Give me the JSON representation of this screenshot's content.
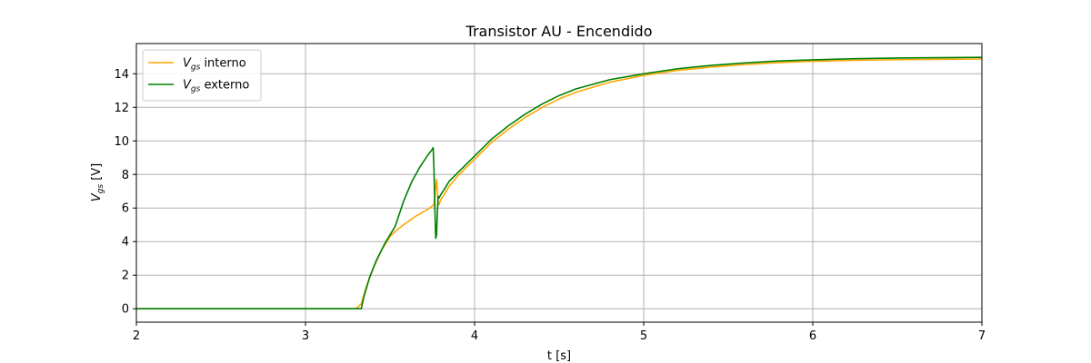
{
  "chart_data": {
    "type": "line",
    "title": "Transistor AU - Encendido",
    "xlabel": "t [s]",
    "ylabel": {
      "main": "V",
      "sub": "gs",
      "suffix": " [V]"
    },
    "xlim": [
      2,
      7
    ],
    "ylim": [
      -0.8,
      15.8
    ],
    "xticks": [
      2,
      3,
      4,
      5,
      6,
      7
    ],
    "yticks": [
      0,
      2,
      4,
      6,
      8,
      10,
      12,
      14
    ],
    "grid": true,
    "legend_position": "top-left",
    "series": [
      {
        "name": "interno",
        "label": {
          "main": "V",
          "sub": "gs",
          "suffix": " interno"
        },
        "color": "#ffa500",
        "x": [
          2.0,
          3.0,
          3.3,
          3.33,
          3.36,
          3.4,
          3.45,
          3.5,
          3.53,
          3.58,
          3.65,
          3.72,
          3.76,
          3.765,
          3.77,
          3.775,
          3.78,
          3.785,
          3.79,
          3.8,
          3.82,
          3.85,
          3.9,
          4.0,
          4.1,
          4.2,
          4.3,
          4.4,
          4.5,
          4.6,
          4.8,
          5.0,
          5.2,
          5.4,
          5.6,
          5.8,
          6.0,
          6.25,
          6.5,
          6.75,
          7.0
        ],
        "y": [
          0,
          0,
          0,
          0.3,
          1.3,
          2.4,
          3.5,
          4.3,
          4.6,
          5.0,
          5.5,
          5.9,
          6.2,
          6.6,
          7.3,
          7.7,
          7.1,
          6.2,
          6.2,
          6.5,
          6.8,
          7.3,
          7.9,
          8.9,
          9.9,
          10.7,
          11.4,
          12.0,
          12.5,
          12.9,
          13.5,
          13.9,
          14.2,
          14.4,
          14.55,
          14.67,
          14.74,
          14.8,
          14.84,
          14.86,
          14.88
        ]
      },
      {
        "name": "externo",
        "label": {
          "main": "V",
          "sub": "gs",
          "suffix": " externo"
        },
        "color": "#008000",
        "x": [
          2.0,
          3.0,
          3.33,
          3.345,
          3.38,
          3.42,
          3.47,
          3.53,
          3.58,
          3.63,
          3.68,
          3.72,
          3.75,
          3.755,
          3.76,
          3.765,
          3.77,
          3.775,
          3.78,
          3.785,
          3.79,
          3.8,
          3.82,
          3.85,
          3.9,
          4.0,
          4.1,
          4.2,
          4.3,
          4.4,
          4.5,
          4.6,
          4.8,
          5.0,
          5.2,
          5.4,
          5.6,
          5.8,
          6.0,
          6.25,
          6.5,
          6.75,
          7.0
        ],
        "y": [
          0,
          0,
          0,
          0.7,
          1.9,
          2.9,
          3.9,
          4.9,
          6.4,
          7.6,
          8.5,
          9.1,
          9.5,
          9.6,
          8.3,
          6.0,
          4.2,
          4.4,
          5.8,
          6.7,
          6.6,
          6.8,
          7.1,
          7.6,
          8.1,
          9.1,
          10.1,
          10.9,
          11.6,
          12.2,
          12.7,
          13.1,
          13.65,
          14.0,
          14.3,
          14.5,
          14.65,
          14.76,
          14.83,
          14.9,
          14.94,
          14.96,
          14.98
        ]
      }
    ]
  }
}
